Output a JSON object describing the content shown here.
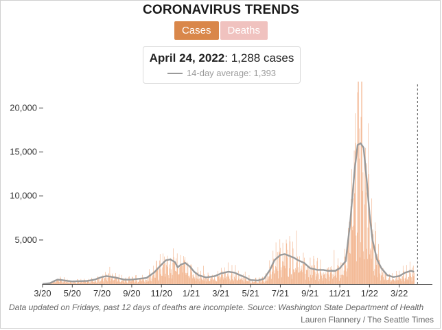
{
  "title": "CORONAVIRUS TRENDS",
  "toggle": {
    "cases_label": "Cases",
    "deaths_label": "Deaths",
    "active": "Cases"
  },
  "tooltip": {
    "date": "April 24, 2022",
    "value_text": ": 1,288 cases",
    "average_text": "14-day average: 1,393"
  },
  "colors": {
    "bars": "#f2b38c",
    "average_line": "#9a9a9a",
    "cases_button": "#d9874a",
    "deaths_button": "#f0c2bf"
  },
  "footnote": "Data updated on Fridays, past 12 days of deaths are incomplete. Source: Washington State Department of Health",
  "credit": "Lauren Flannery / The Seattle Times",
  "chart_data": {
    "type": "bar",
    "series": [
      {
        "name": "Cases",
        "kind": "bar"
      },
      {
        "name": "14-day average",
        "kind": "line"
      }
    ],
    "x_ticks": [
      "3/20",
      "5/20",
      "7/20",
      "9/20",
      "11/20",
      "1/21",
      "3/21",
      "5/21",
      "7/21",
      "9/21",
      "11/21",
      "1/22",
      "3/22"
    ],
    "y_ticks": [
      "20,000",
      "15,000",
      "10,000",
      "5,000"
    ],
    "y_tick_values": [
      20000,
      15000,
      10000,
      5000
    ],
    "ylim": [
      0,
      23000
    ],
    "x_range_months": [
      0,
      26
    ],
    "average_points": [
      [
        0,
        0
      ],
      [
        0.5,
        100
      ],
      [
        0.8,
        350
      ],
      [
        1.0,
        500
      ],
      [
        1.3,
        450
      ],
      [
        1.7,
        350
      ],
      [
        2.0,
        300
      ],
      [
        3.0,
        350
      ],
      [
        3.5,
        500
      ],
      [
        4.0,
        800
      ],
      [
        4.3,
        900
      ],
      [
        4.7,
        800
      ],
      [
        5.0,
        700
      ],
      [
        5.5,
        500
      ],
      [
        6.0,
        500
      ],
      [
        7.0,
        700
      ],
      [
        7.5,
        1300
      ],
      [
        8.0,
        2200
      ],
      [
        8.3,
        2700
      ],
      [
        8.6,
        2800
      ],
      [
        8.9,
        2500
      ],
      [
        9.1,
        1900
      ],
      [
        9.3,
        2200
      ],
      [
        9.6,
        2400
      ],
      [
        9.9,
        2000
      ],
      [
        10.2,
        1400
      ],
      [
        10.5,
        1000
      ],
      [
        11.0,
        750
      ],
      [
        11.6,
        900
      ],
      [
        12.0,
        1200
      ],
      [
        12.5,
        1400
      ],
      [
        12.9,
        1300
      ],
      [
        13.3,
        1000
      ],
      [
        13.6,
        800
      ],
      [
        14.0,
        450
      ],
      [
        14.5,
        400
      ],
      [
        14.9,
        600
      ],
      [
        15.3,
        1600
      ],
      [
        15.6,
        2700
      ],
      [
        16.0,
        3300
      ],
      [
        16.3,
        3400
      ],
      [
        16.6,
        3200
      ],
      [
        16.9,
        3000
      ],
      [
        17.2,
        2700
      ],
      [
        17.6,
        2400
      ],
      [
        18.0,
        1800
      ],
      [
        18.5,
        1600
      ],
      [
        18.9,
        1600
      ],
      [
        19.2,
        1500
      ],
      [
        19.7,
        1500
      ],
      [
        20.0,
        1800
      ],
      [
        20.4,
        2600
      ],
      [
        20.7,
        7000
      ],
      [
        21.0,
        13000
      ],
      [
        21.2,
        15800
      ],
      [
        21.4,
        16000
      ],
      [
        21.6,
        15500
      ],
      [
        21.8,
        12000
      ],
      [
        22.0,
        8000
      ],
      [
        22.2,
        5000
      ],
      [
        22.5,
        2800
      ],
      [
        22.8,
        1800
      ],
      [
        23.2,
        1000
      ],
      [
        23.6,
        800
      ],
      [
        24.0,
        900
      ],
      [
        24.4,
        1300
      ],
      [
        24.8,
        1500
      ],
      [
        25.0,
        1393
      ]
    ],
    "last_point": {
      "value": 1288,
      "average": 1393
    }
  }
}
